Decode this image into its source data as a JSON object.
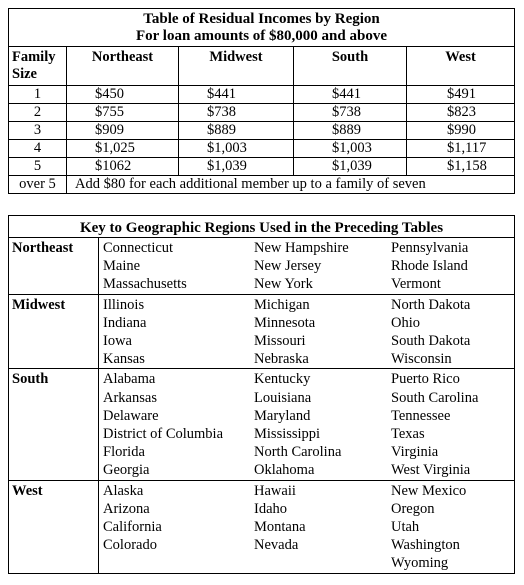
{
  "income_table": {
    "title_line1": "Table of Residual Incomes by Region",
    "title_line2": "For loan amounts of $80,000 and above",
    "headers": {
      "family_line1": "Family",
      "family_line2": "Size",
      "northeast": "Northeast",
      "midwest": "Midwest",
      "south": "South",
      "west": "West"
    },
    "rows": [
      {
        "size": "1",
        "northeast": "$450",
        "midwest": "$441",
        "south": "$441",
        "west": "$491"
      },
      {
        "size": "2",
        "northeast": "$755",
        "midwest": "$738",
        "south": "$738",
        "west": "$823"
      },
      {
        "size": "3",
        "northeast": "$909",
        "midwest": "$889",
        "south": "$889",
        "west": "$990"
      },
      {
        "size": "4",
        "northeast": "$1,025",
        "midwest": "$1,003",
        "south": "$1,003",
        "west": "$1,117"
      },
      {
        "size": "5",
        "northeast": "$1062",
        "midwest": "$1,039",
        "south": "$1,039",
        "west": "$1,158"
      }
    ],
    "over_label": "over 5",
    "over_note": "Add $80 for each additional member up to a family of seven"
  },
  "region_key": {
    "title": "Key to Geographic Regions Used in the Preceding Tables",
    "regions": [
      {
        "name": "Northeast",
        "states": [
          "Connecticut",
          "New Hampshire",
          "Pennsylvania",
          "Maine",
          "New Jersey",
          "Rhode Island",
          "Massachusetts",
          "New York",
          "Vermont"
        ]
      },
      {
        "name": "Midwest",
        "states": [
          "Illinois",
          "Michigan",
          "North Dakota",
          "Indiana",
          "Minnesota",
          "Ohio",
          "Iowa",
          "Missouri",
          "South Dakota",
          "Kansas",
          "Nebraska",
          "Wisconsin"
        ]
      },
      {
        "name": "South",
        "states": [
          "Alabama",
          "Kentucky",
          "Puerto Rico",
          "Arkansas",
          "Louisiana",
          "South Carolina",
          "Delaware",
          "Maryland",
          "Tennessee",
          "District of Columbia",
          "Mississippi",
          "Texas",
          "Florida",
          "North Carolina",
          "Virginia",
          "Georgia",
          "Oklahoma",
          "West Virginia"
        ]
      },
      {
        "name": "West",
        "states": [
          "Alaska",
          "Hawaii",
          "New Mexico",
          "Arizona",
          "Idaho",
          "Oregon",
          "California",
          "Montana",
          "Utah",
          "Colorado",
          "Nevada",
          "Washington",
          "",
          "",
          "Wyoming"
        ]
      }
    ]
  }
}
